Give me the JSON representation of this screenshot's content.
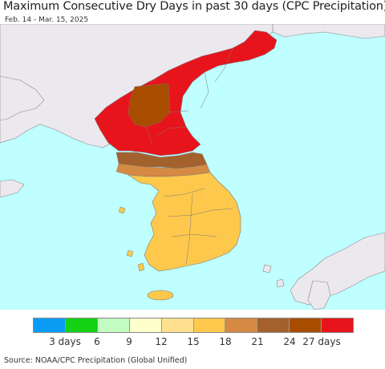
{
  "title": "Maximum Consecutive Dry Days in past 30 days (CPC Precipitation)",
  "subtitle": "Feb. 14 - Mar. 15, 2025",
  "source": "Source: NOAA/CPC Precipitation (Global Unified)",
  "colors": {
    "sea": "#bfffff",
    "land_outside": "#ebe8ee",
    "border": "#7a7a7a",
    "north_korea": "#e8141c",
    "south_korea": "#fec84c"
  },
  "legend": {
    "colors": [
      "#0a9cf5",
      "#14d214",
      "#c3fcc3",
      "#ffffcb",
      "#fee08f",
      "#fec84c",
      "#d58a44",
      "#a3612e",
      "#a84d00",
      "#e8141c"
    ],
    "tick_labels": [
      "3 days",
      "6",
      "9",
      "12",
      "15",
      "18",
      "21",
      "24",
      "27 days"
    ]
  }
}
